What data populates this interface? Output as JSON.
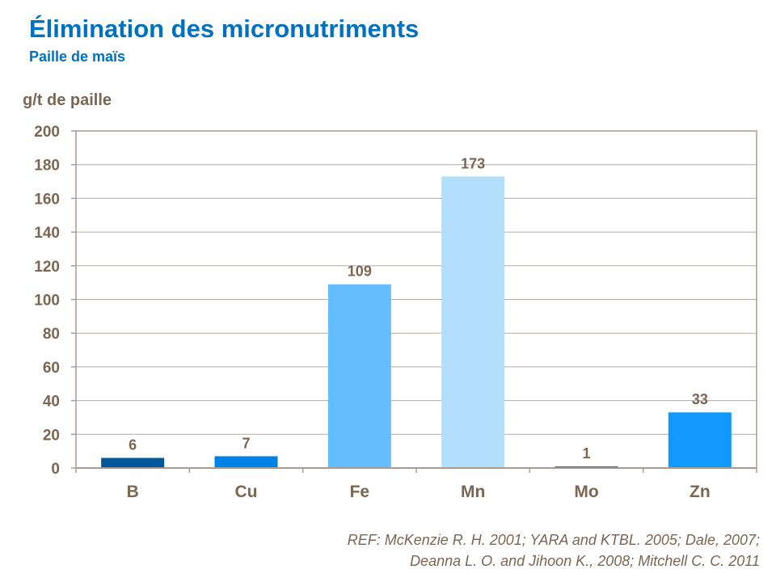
{
  "chart_data": {
    "type": "bar",
    "title": "Élimination des micronutriments",
    "subtitle": "Paille  de maïs",
    "ylabel": "g/t de paille",
    "xlabel": "",
    "categories": [
      "B",
      "Cu",
      "Fe",
      "Mn",
      "Mo",
      "Zn"
    ],
    "values": [
      6,
      7,
      109,
      173,
      1,
      33
    ],
    "data_labels": [
      "6",
      "7",
      "109",
      "173",
      "1",
      "33"
    ],
    "colors": [
      "#00579a",
      "#0082e4",
      "#66bdff",
      "#b4dffc",
      "#0a74d0",
      "#1199ff"
    ],
    "ylim": [
      0,
      200
    ],
    "yticks": [
      0,
      20,
      40,
      60,
      80,
      100,
      120,
      140,
      160,
      180,
      200
    ],
    "grid": true,
    "legend": "none"
  },
  "reference": {
    "line1": "REF: McKenzie R. H. 2001; YARA and KTBL. 2005; Dale, 2007;",
    "line2": "Deanna L. O. and Jihoon K.,  2008; Mitchell C. C. 2011"
  },
  "text_color": "#7a6652",
  "title_color": "#0070c0"
}
